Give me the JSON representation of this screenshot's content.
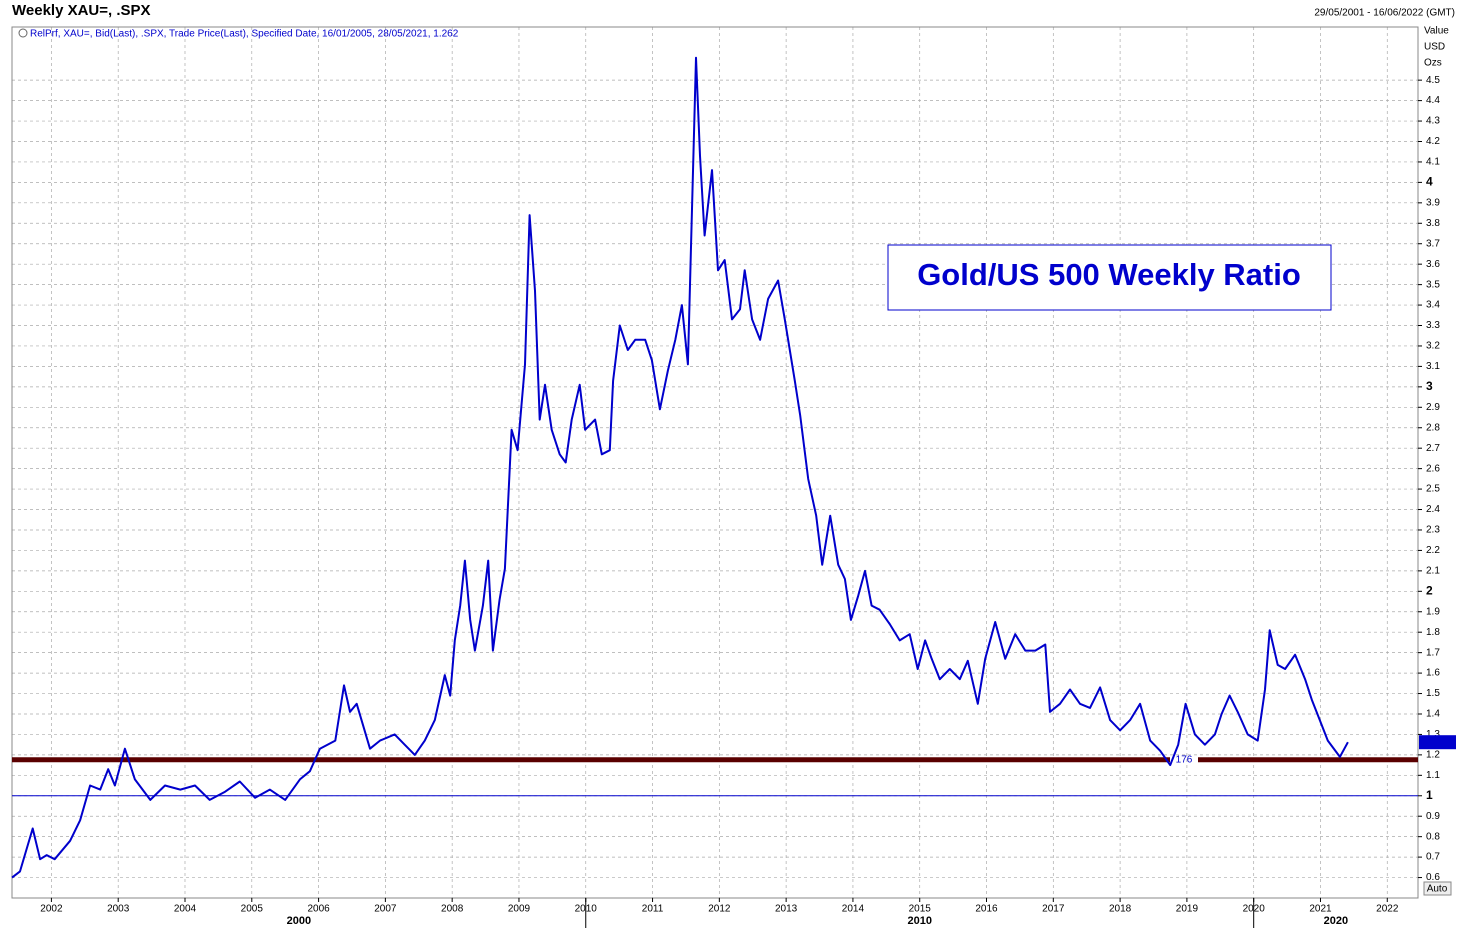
{
  "chart_data": {
    "type": "line",
    "title": "Weekly XAU=, .SPX",
    "date_range": "29/05/2001 - 16/06/2022 (GMT)",
    "legend_text": "RelPrf, XAU=, Bid(Last), .SPX, Trade Price(Last), Specified Date, 16/01/2005, 28/05/2021, 1.262",
    "annotation": "Gold/US 500 Weekly Ratio",
    "axis_units": [
      "Value",
      "USD",
      "Ozs"
    ],
    "auto_button": "Auto",
    "xlim": [
      2001.41,
      2022.46
    ],
    "xticks": [
      2002,
      2003,
      2004,
      2005,
      2006,
      2007,
      2008,
      2009,
      2010,
      2011,
      2012,
      2013,
      2014,
      2015,
      2016,
      2017,
      2018,
      2019,
      2020,
      2021,
      2022
    ],
    "decade_labels": [
      2000,
      2010,
      2020
    ],
    "ylim": [
      0.5,
      4.76
    ],
    "yticks": [
      0.6,
      0.7,
      0.8,
      0.9,
      1,
      1.1,
      1.2,
      1.3,
      1.4,
      1.5,
      1.6,
      1.7,
      1.8,
      1.9,
      2,
      2.1,
      2.2,
      2.3,
      2.4,
      2.5,
      2.6,
      2.7,
      2.8,
      2.9,
      3,
      3.1,
      3.2,
      3.3,
      3.4,
      3.5,
      3.6,
      3.7,
      3.8,
      3.9,
      4,
      4.1,
      4.2,
      4.3,
      4.4,
      4.5
    ],
    "grid": true,
    "reference_line": {
      "value": 1,
      "color": "#0000cc"
    },
    "support_line": {
      "value": 1.176,
      "label": "176",
      "color": "#5a0000"
    },
    "series": [
      {
        "name": "RelPrf",
        "color": "#0000cc",
        "x": [
          2001.41,
          2001.53,
          2001.72,
          2001.83,
          2001.93,
          2002.05,
          2002.28,
          2002.43,
          2002.58,
          2002.73,
          2002.85,
          2002.95,
          2003.1,
          2003.25,
          2003.48,
          2003.7,
          2003.93,
          2004.15,
          2004.37,
          2004.6,
          2004.82,
          2005.05,
          2005.27,
          2005.5,
          2005.72,
          2005.87,
          2006.02,
          2006.25,
          2006.38,
          2006.47,
          2006.57,
          2006.77,
          2006.92,
          2007.14,
          2007.29,
          2007.44,
          2007.59,
          2007.74,
          2007.89,
          2007.97,
          2008.04,
          2008.12,
          2008.19,
          2008.27,
          2008.34,
          2008.46,
          2008.54,
          2008.61,
          2008.71,
          2008.79,
          2008.89,
          2008.98,
          2009.09,
          2009.16,
          2009.24,
          2009.31,
          2009.39,
          2009.49,
          2009.61,
          2009.7,
          2009.79,
          2009.91,
          2009.99,
          2010.14,
          2010.24,
          2010.36,
          2010.41,
          2010.51,
          2010.63,
          2010.74,
          2010.89,
          2010.99,
          2011.11,
          2011.23,
          2011.34,
          2011.44,
          2011.53,
          2011.59,
          2011.65,
          2011.71,
          2011.78,
          2011.89,
          2011.98,
          2012.08,
          2012.19,
          2012.31,
          2012.38,
          2012.49,
          2012.61,
          2012.73,
          2012.88,
          2012.98,
          2013.13,
          2013.21,
          2013.33,
          2013.45,
          2013.54,
          2013.66,
          2013.78,
          2013.88,
          2013.97,
          2014.08,
          2014.18,
          2014.28,
          2014.4,
          2014.55,
          2014.7,
          2014.85,
          2014.97,
          2015.08,
          2015.18,
          2015.3,
          2015.45,
          2015.6,
          2015.72,
          2015.87,
          2015.98,
          2016.13,
          2016.28,
          2016.43,
          2016.58,
          2016.73,
          2016.88,
          2016.95,
          2017.1,
          2017.25,
          2017.4,
          2017.55,
          2017.7,
          2017.85,
          2018.0,
          2018.15,
          2018.3,
          2018.45,
          2018.6,
          2018.75,
          2018.87,
          2018.98,
          2019.12,
          2019.27,
          2019.42,
          2019.52,
          2019.64,
          2019.76,
          2019.91,
          2020.06,
          2020.17,
          2020.24,
          2020.36,
          2020.47,
          2020.62,
          2020.77,
          2020.87,
          2020.99,
          2021.11,
          2021.29,
          2021.41
        ],
        "values": [
          0.6,
          0.63,
          0.84,
          0.69,
          0.71,
          0.69,
          0.78,
          0.88,
          1.05,
          1.03,
          1.13,
          1.05,
          1.23,
          1.08,
          0.98,
          1.05,
          1.03,
          1.05,
          0.98,
          1.02,
          1.07,
          0.99,
          1.03,
          0.98,
          1.08,
          1.12,
          1.23,
          1.27,
          1.54,
          1.41,
          1.45,
          1.23,
          1.27,
          1.3,
          1.25,
          1.2,
          1.27,
          1.37,
          1.59,
          1.49,
          1.76,
          1.93,
          2.15,
          1.86,
          1.71,
          1.93,
          2.15,
          1.71,
          1.96,
          2.11,
          2.79,
          2.69,
          3.11,
          3.84,
          3.47,
          2.84,
          3.01,
          2.79,
          2.67,
          2.63,
          2.84,
          3.01,
          2.79,
          2.84,
          2.67,
          2.69,
          3.03,
          3.3,
          3.18,
          3.23,
          3.23,
          3.13,
          2.89,
          3.08,
          3.23,
          3.4,
          3.11,
          3.87,
          4.61,
          4.13,
          3.74,
          4.06,
          3.57,
          3.62,
          3.33,
          3.38,
          3.57,
          3.33,
          3.23,
          3.43,
          3.52,
          3.33,
          3.03,
          2.86,
          2.55,
          2.37,
          2.13,
          2.37,
          2.13,
          2.06,
          1.86,
          1.98,
          2.1,
          1.93,
          1.91,
          1.84,
          1.76,
          1.79,
          1.62,
          1.76,
          1.67,
          1.57,
          1.62,
          1.57,
          1.66,
          1.45,
          1.67,
          1.85,
          1.67,
          1.79,
          1.71,
          1.71,
          1.74,
          1.41,
          1.45,
          1.52,
          1.45,
          1.43,
          1.53,
          1.37,
          1.32,
          1.37,
          1.45,
          1.27,
          1.22,
          1.15,
          1.25,
          1.45,
          1.3,
          1.25,
          1.3,
          1.4,
          1.49,
          1.41,
          1.3,
          1.27,
          1.52,
          1.81,
          1.64,
          1.62,
          1.69,
          1.57,
          1.47,
          1.37,
          1.27,
          1.19,
          1.262
        ]
      }
    ]
  }
}
